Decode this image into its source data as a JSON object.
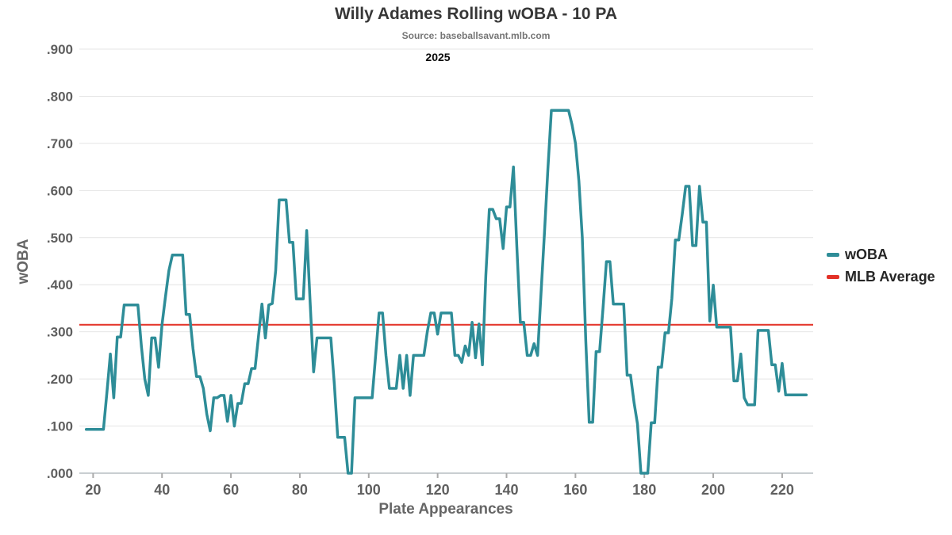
{
  "title": "Willy Adames Rolling wOBA - 10 PA",
  "subtitle": "Source: baseballsavant.mlb.com",
  "period_label": "2025",
  "colors": {
    "line": "#2e8d98",
    "average": "#e33127",
    "grid": "#e4e4e4",
    "axis": "#c9ced1",
    "tick": "#aaaaaa",
    "tick_text": "#5f5f5f"
  },
  "legend": [
    {
      "label": "wOBA",
      "color": "#2e8d98"
    },
    {
      "label": "MLB Average",
      "color": "#e33127"
    }
  ],
  "chart_data": {
    "type": "line",
    "title": "Willy Adames Rolling wOBA - 10 PA",
    "subtitle": "Source: baseballsavant.mlb.com",
    "season": "2025",
    "xlabel": "Plate Appearances",
    "ylabel": "wOBA",
    "xlim": [
      16,
      229
    ],
    "ylim": [
      0,
      0.9
    ],
    "grid": "horizontal",
    "legend_position": "right",
    "x_ticks": [
      20,
      40,
      60,
      80,
      100,
      120,
      140,
      160,
      180,
      200,
      220
    ],
    "y_ticks": [
      0,
      0.1,
      0.2,
      0.3,
      0.4,
      0.5,
      0.6,
      0.7,
      0.8,
      0.9
    ],
    "y_tick_labels": [
      ".000",
      ".100",
      ".200",
      ".300",
      ".400",
      ".500",
      ".600",
      ".700",
      ".800",
      ".900"
    ],
    "mlb_average": 0.315,
    "series": [
      {
        "name": "wOBA",
        "points": [
          [
            18,
            0.093
          ],
          [
            19,
            0.093
          ],
          [
            20,
            0.093
          ],
          [
            21,
            0.093
          ],
          [
            22,
            0.093
          ],
          [
            23,
            0.093
          ],
          [
            24,
            0.17
          ],
          [
            25,
            0.253
          ],
          [
            26,
            0.16
          ],
          [
            27,
            0.289
          ],
          [
            28,
            0.289
          ],
          [
            29,
            0.357
          ],
          [
            30,
            0.357
          ],
          [
            31,
            0.357
          ],
          [
            32,
            0.357
          ],
          [
            33,
            0.357
          ],
          [
            34,
            0.27
          ],
          [
            35,
            0.2
          ],
          [
            36,
            0.165
          ],
          [
            37,
            0.287
          ],
          [
            38,
            0.287
          ],
          [
            39,
            0.225
          ],
          [
            40,
            0.315
          ],
          [
            41,
            0.375
          ],
          [
            42,
            0.43
          ],
          [
            43,
            0.463
          ],
          [
            44,
            0.463
          ],
          [
            45,
            0.463
          ],
          [
            46,
            0.463
          ],
          [
            47,
            0.337
          ],
          [
            48,
            0.337
          ],
          [
            49,
            0.264
          ],
          [
            50,
            0.205
          ],
          [
            51,
            0.205
          ],
          [
            52,
            0.18
          ],
          [
            53,
            0.125
          ],
          [
            54,
            0.09
          ],
          [
            55,
            0.16
          ],
          [
            56,
            0.16
          ],
          [
            57,
            0.165
          ],
          [
            58,
            0.165
          ],
          [
            59,
            0.11
          ],
          [
            60,
            0.165
          ],
          [
            61,
            0.1
          ],
          [
            62,
            0.148
          ],
          [
            63,
            0.148
          ],
          [
            64,
            0.19
          ],
          [
            65,
            0.19
          ],
          [
            66,
            0.222
          ],
          [
            67,
            0.222
          ],
          [
            68,
            0.29
          ],
          [
            69,
            0.359
          ],
          [
            70,
            0.287
          ],
          [
            71,
            0.357
          ],
          [
            72,
            0.36
          ],
          [
            73,
            0.43
          ],
          [
            74,
            0.58
          ],
          [
            75,
            0.58
          ],
          [
            76,
            0.58
          ],
          [
            77,
            0.49
          ],
          [
            78,
            0.49
          ],
          [
            79,
            0.37
          ],
          [
            80,
            0.37
          ],
          [
            81,
            0.37
          ],
          [
            82,
            0.515
          ],
          [
            83,
            0.36
          ],
          [
            84,
            0.215
          ],
          [
            85,
            0.287
          ],
          [
            86,
            0.287
          ],
          [
            87,
            0.287
          ],
          [
            88,
            0.287
          ],
          [
            89,
            0.287
          ],
          [
            90,
            0.19
          ],
          [
            91,
            0.076
          ],
          [
            92,
            0.076
          ],
          [
            93,
            0.076
          ],
          [
            94,
            0.0
          ],
          [
            95,
            0.0
          ],
          [
            96,
            0.16
          ],
          [
            97,
            0.16
          ],
          [
            98,
            0.16
          ],
          [
            99,
            0.16
          ],
          [
            100,
            0.16
          ],
          [
            101,
            0.16
          ],
          [
            102,
            0.25
          ],
          [
            103,
            0.34
          ],
          [
            104,
            0.34
          ],
          [
            105,
            0.25
          ],
          [
            106,
            0.18
          ],
          [
            107,
            0.18
          ],
          [
            108,
            0.18
          ],
          [
            109,
            0.25
          ],
          [
            110,
            0.18
          ],
          [
            111,
            0.25
          ],
          [
            112,
            0.165
          ],
          [
            113,
            0.25
          ],
          [
            114,
            0.25
          ],
          [
            115,
            0.25
          ],
          [
            116,
            0.25
          ],
          [
            117,
            0.3
          ],
          [
            118,
            0.34
          ],
          [
            119,
            0.34
          ],
          [
            120,
            0.295
          ],
          [
            121,
            0.34
          ],
          [
            122,
            0.34
          ],
          [
            123,
            0.34
          ],
          [
            124,
            0.34
          ],
          [
            125,
            0.25
          ],
          [
            126,
            0.25
          ],
          [
            127,
            0.235
          ],
          [
            128,
            0.27
          ],
          [
            129,
            0.25
          ],
          [
            130,
            0.32
          ],
          [
            131,
            0.245
          ],
          [
            132,
            0.317
          ],
          [
            133,
            0.23
          ],
          [
            134,
            0.42
          ],
          [
            135,
            0.56
          ],
          [
            136,
            0.56
          ],
          [
            137,
            0.54
          ],
          [
            138,
            0.54
          ],
          [
            139,
            0.477
          ],
          [
            140,
            0.565
          ],
          [
            141,
            0.565
          ],
          [
            142,
            0.65
          ],
          [
            143,
            0.48
          ],
          [
            144,
            0.32
          ],
          [
            145,
            0.32
          ],
          [
            146,
            0.25
          ],
          [
            147,
            0.25
          ],
          [
            148,
            0.275
          ],
          [
            149,
            0.25
          ],
          [
            150,
            0.38
          ],
          [
            151,
            0.51
          ],
          [
            152,
            0.645
          ],
          [
            153,
            0.77
          ],
          [
            154,
            0.77
          ],
          [
            155,
            0.77
          ],
          [
            156,
            0.77
          ],
          [
            157,
            0.77
          ],
          [
            158,
            0.77
          ],
          [
            159,
            0.74
          ],
          [
            160,
            0.7
          ],
          [
            161,
            0.62
          ],
          [
            162,
            0.5
          ],
          [
            163,
            0.28
          ],
          [
            164,
            0.108
          ],
          [
            165,
            0.108
          ],
          [
            166,
            0.258
          ],
          [
            167,
            0.258
          ],
          [
            168,
            0.35
          ],
          [
            169,
            0.449
          ],
          [
            170,
            0.449
          ],
          [
            171,
            0.359
          ],
          [
            172,
            0.359
          ],
          [
            173,
            0.359
          ],
          [
            174,
            0.359
          ],
          [
            175,
            0.208
          ],
          [
            176,
            0.208
          ],
          [
            177,
            0.15
          ],
          [
            178,
            0.105
          ],
          [
            179,
            0.0
          ],
          [
            180,
            0.0
          ],
          [
            181,
            0.0
          ],
          [
            182,
            0.107
          ],
          [
            183,
            0.107
          ],
          [
            184,
            0.225
          ],
          [
            185,
            0.225
          ],
          [
            186,
            0.298
          ],
          [
            187,
            0.298
          ],
          [
            188,
            0.371
          ],
          [
            189,
            0.495
          ],
          [
            190,
            0.495
          ],
          [
            191,
            0.55
          ],
          [
            192,
            0.609
          ],
          [
            193,
            0.609
          ],
          [
            194,
            0.483
          ],
          [
            195,
            0.483
          ],
          [
            196,
            0.609
          ],
          [
            197,
            0.533
          ],
          [
            198,
            0.533
          ],
          [
            199,
            0.323
          ],
          [
            200,
            0.399
          ],
          [
            201,
            0.31
          ],
          [
            202,
            0.31
          ],
          [
            203,
            0.31
          ],
          [
            204,
            0.31
          ],
          [
            205,
            0.31
          ],
          [
            206,
            0.196
          ],
          [
            207,
            0.196
          ],
          [
            208,
            0.253
          ],
          [
            209,
            0.16
          ],
          [
            210,
            0.145
          ],
          [
            211,
            0.145
          ],
          [
            212,
            0.145
          ],
          [
            213,
            0.303
          ],
          [
            214,
            0.303
          ],
          [
            215,
            0.303
          ],
          [
            216,
            0.303
          ],
          [
            217,
            0.23
          ],
          [
            218,
            0.23
          ],
          [
            219,
            0.174
          ],
          [
            220,
            0.233
          ],
          [
            221,
            0.166
          ],
          [
            222,
            0.166
          ],
          [
            223,
            0.166
          ],
          [
            224,
            0.166
          ],
          [
            225,
            0.166
          ],
          [
            226,
            0.166
          ],
          [
            227,
            0.166
          ]
        ]
      }
    ]
  }
}
